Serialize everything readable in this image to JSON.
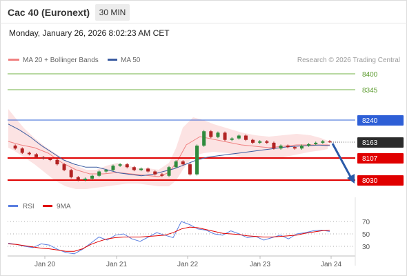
{
  "header": {
    "instrument": "Cac 40 (Euronext)",
    "timeframe": "30 MIN",
    "datetime": "Monday, January 26, 2026 8:02:23 AM CET"
  },
  "legend": {
    "bollinger": "MA 20 + Bollinger Bands",
    "ma50": "MA 50",
    "copyright": "Research © 2026 Trading Central",
    "rsi": "RSI",
    "rsi_ma": "9MA"
  },
  "colors": {
    "support": "#e00000",
    "resistance_green": "#72b043",
    "resistance_blue": "#2e5fd6",
    "ma50": "#3a5ba0",
    "bollinger": "#f08080",
    "candle_up": "#2e8b3d",
    "candle_down": "#b22222",
    "arrow": "#2a5aa8",
    "current_tag": "#2b2b2b",
    "rsi": "#5b7fe0",
    "rsi_ma": "#e00000"
  },
  "chart_data": {
    "type": "candlestick",
    "ylim": [
      7990,
      8440
    ],
    "x_labels": [
      "Jan 20",
      "Jan 21",
      "Jan 22",
      "Jan 23",
      "Jan 24"
    ],
    "levels": [
      {
        "value": 8400,
        "label": "8400",
        "role": "resistance",
        "style": "green thin"
      },
      {
        "value": 8345,
        "label": "8345",
        "role": "resistance",
        "style": "green thin"
      },
      {
        "value": 8240,
        "label": "8240",
        "role": "resistance",
        "style": "blue"
      },
      {
        "value": 8163,
        "label": "8163",
        "role": "current",
        "style": "dotted"
      },
      {
        "value": 8107,
        "label": "8107",
        "role": "support",
        "style": "red thick"
      },
      {
        "value": 8030,
        "label": "8030",
        "role": "support",
        "style": "red thick"
      }
    ],
    "forecast_arrow": {
      "from": 8163,
      "to": 8030
    },
    "price_series": [
      8150,
      8140,
      8125,
      8120,
      8110,
      8105,
      8100,
      8085,
      8065,
      8040,
      8030,
      8035,
      8045,
      8060,
      8065,
      8080,
      8085,
      8075,
      8065,
      8070,
      8060,
      8050,
      8045,
      8075,
      8095,
      8085,
      8050,
      8150,
      8200,
      8180,
      8195,
      8170,
      8175,
      8185,
      8170,
      8160,
      8165,
      8160,
      8140,
      8150,
      8145,
      8140,
      8150,
      8155,
      8160,
      8165,
      8163
    ],
    "ma50_series": [
      8225,
      8205,
      8180,
      8150,
      8125,
      8100,
      8085,
      8075,
      8075,
      8065,
      8055,
      8050,
      8045,
      8050,
      8060,
      8070,
      8085,
      8100,
      8110,
      8115,
      8120,
      8125,
      8130,
      8135,
      8140,
      8145,
      8148,
      8150,
      8152,
      8150
    ],
    "rsi": {
      "yticks": [
        30,
        50,
        70
      ],
      "ylim": [
        10,
        80
      ],
      "series": [
        35,
        33,
        30,
        28,
        34,
        32,
        25,
        20,
        18,
        25,
        35,
        45,
        40,
        48,
        50,
        42,
        38,
        45,
        52,
        48,
        44,
        70,
        65,
        58,
        56,
        50,
        48,
        55,
        50,
        44,
        46,
        40,
        44,
        48,
        42,
        50,
        52,
        55,
        56,
        54
      ],
      "ma_series": [
        34,
        33,
        31,
        29,
        27,
        26,
        24,
        22,
        22,
        26,
        33,
        38,
        42,
        44,
        45,
        45,
        45,
        46,
        47,
        48,
        52,
        58,
        61,
        60,
        57,
        54,
        51,
        50,
        49,
        47,
        46,
        45,
        45,
        46,
        47,
        48,
        51,
        53,
        55,
        56
      ]
    }
  }
}
